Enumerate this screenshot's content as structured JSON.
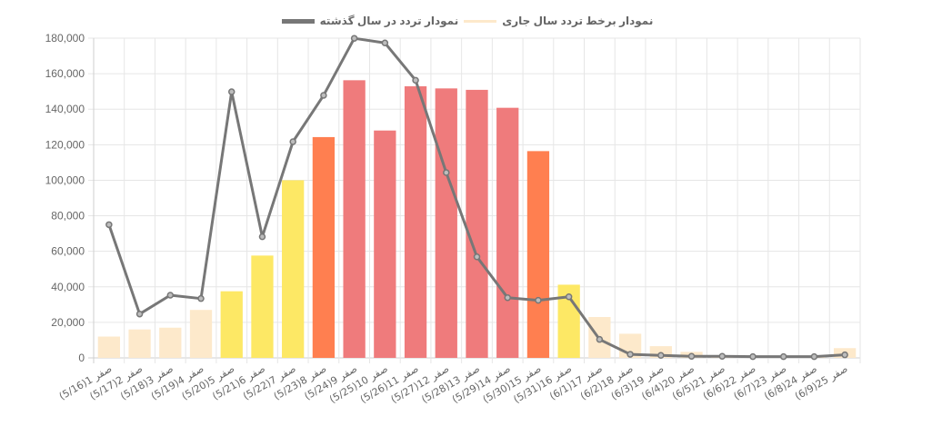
{
  "legend": {
    "items": [
      {
        "label": "نمودار برخط تردد سال جاری",
        "color": "#FDE9CB",
        "type": "bar"
      },
      {
        "label": "نمودار تردد در سال گذشته",
        "color": "#777777",
        "type": "line"
      }
    ]
  },
  "colors": {
    "cream": "#FDE9CB",
    "yellow": "#FDE865",
    "orange": "#FF7F50",
    "pink": "#EF7B7C",
    "line": "#777777",
    "grid": "#E6E6E6"
  },
  "chart_data": {
    "type": "bar",
    "title": "",
    "xlabel": "",
    "ylabel": "",
    "ylim": [
      0,
      180000
    ],
    "yticks": [
      0,
      20000,
      40000,
      60000,
      80000,
      100000,
      120000,
      140000,
      160000,
      180000
    ],
    "ytick_labels": [
      "0",
      "20,000",
      "40,000",
      "60,000",
      "80,000",
      "100,000",
      "120,000",
      "140,000",
      "160,000",
      "180,000"
    ],
    "grid": true,
    "legend_position": "top",
    "categories": [
      "1 صفر(5/16)",
      "2 صفر(5/17)",
      "3 صفر(5/18)",
      "4 صفر(5/19)",
      "5 صفر(5/20)",
      "6 صفر(5/21)",
      "7 صفر(5/22)",
      "8 صفر(5/23)",
      "9 صفر(5/24)",
      "10 صفر(5/25)",
      "11 صفر(5/26)",
      "12 صفر(5/27)",
      "13 صفر(5/28)",
      "14 صفر(5/29)",
      "15 صفر(5/30)",
      "16 صفر(5/31)",
      "17 صفر(6/1)",
      "18 صفر(6/2)",
      "19 صفر(6/3)",
      "20 صفر(6/4)",
      "21 صفر(6/5)",
      "22 صفر(6/6)",
      "23 صفر(6/7)",
      "24 صفر(6/8)",
      "25 صفر(6/9)"
    ],
    "series": [
      {
        "name": "نمودار برخط تردد سال جاری",
        "type": "bar",
        "values": [
          12000,
          16000,
          17000,
          27000,
          37500,
          57600,
          100000,
          124300,
          156300,
          128000,
          152900,
          151700,
          150900,
          140800,
          116400,
          41200,
          23000,
          13600,
          6600,
          3400,
          1000,
          700,
          500,
          500,
          5500
        ],
        "bar_colors": [
          "cream",
          "cream",
          "cream",
          "cream",
          "yellow",
          "yellow",
          "yellow",
          "orange",
          "pink",
          "pink",
          "pink",
          "pink",
          "pink",
          "pink",
          "orange",
          "yellow",
          "cream",
          "cream",
          "cream",
          "cream",
          "cream",
          "cream",
          "cream",
          "cream",
          "cream"
        ]
      },
      {
        "name": "نمودار تردد در سال گذشته",
        "type": "line",
        "values": [
          75000,
          24700,
          35300,
          33400,
          149800,
          68200,
          121700,
          147800,
          179900,
          177300,
          156300,
          104300,
          56900,
          33900,
          32400,
          34400,
          10400,
          2000,
          1400,
          900,
          900,
          700,
          700,
          700,
          1700
        ]
      }
    ]
  }
}
